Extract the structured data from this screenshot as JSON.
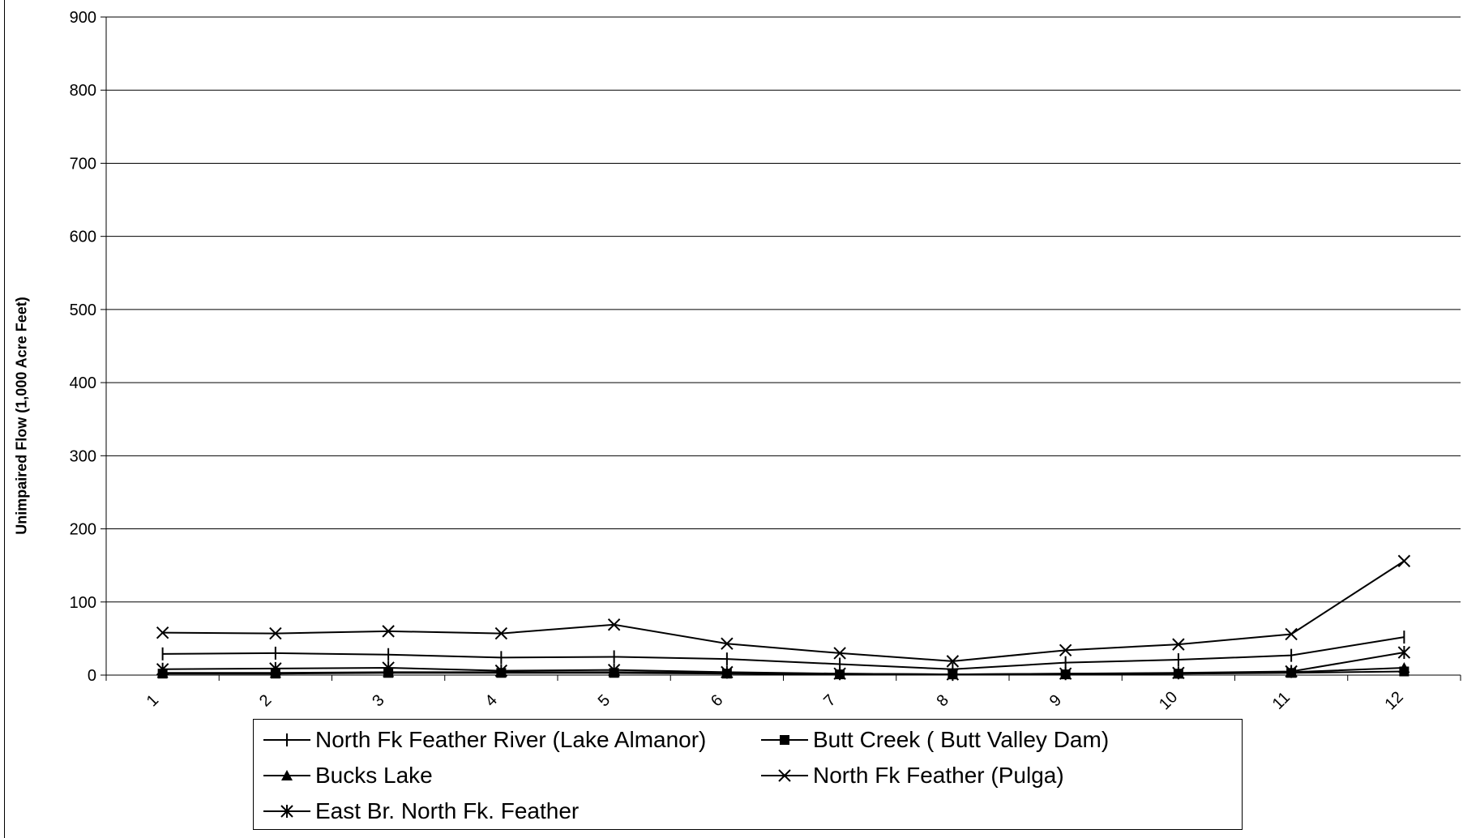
{
  "chart_data": {
    "type": "line",
    "title": "",
    "xlabel": "",
    "ylabel": "Unimpaired Flow (1,000 Acre Feet)",
    "categories": [
      "1",
      "2",
      "3",
      "4",
      "5",
      "6",
      "7",
      "8",
      "9",
      "10",
      "11",
      "12"
    ],
    "ylim": [
      0,
      900
    ],
    "yticks": [
      "0",
      "100",
      "200",
      "300",
      "400",
      "500",
      "600",
      "700",
      "800",
      "900"
    ],
    "grid": true,
    "legend_position": "bottom",
    "series": [
      {
        "name": "North Fk Feather River (Lake Almanor)",
        "marker": "plus",
        "values": [
          29,
          30,
          28,
          24,
          25,
          22,
          15,
          8,
          17,
          21,
          27,
          52
        ]
      },
      {
        "name": "Butt Creek ( Butt Valley Dam)",
        "marker": "square",
        "values": [
          2,
          2,
          3,
          3,
          3,
          2,
          1,
          1,
          1,
          2,
          3,
          5
        ]
      },
      {
        "name": "Bucks Lake",
        "marker": "triangle",
        "values": [
          3,
          3,
          4,
          4,
          4,
          3,
          2,
          1,
          2,
          2,
          4,
          10
        ]
      },
      {
        "name": "North Fk Feather (Pulga)",
        "marker": "x",
        "values": [
          58,
          57,
          60,
          57,
          69,
          43,
          30,
          19,
          34,
          42,
          56,
          156
        ]
      },
      {
        "name": "East Br. North Fk. Feather",
        "marker": "star",
        "values": [
          8,
          9,
          10,
          6,
          7,
          4,
          2,
          1,
          2,
          3,
          5,
          31
        ]
      }
    ]
  }
}
